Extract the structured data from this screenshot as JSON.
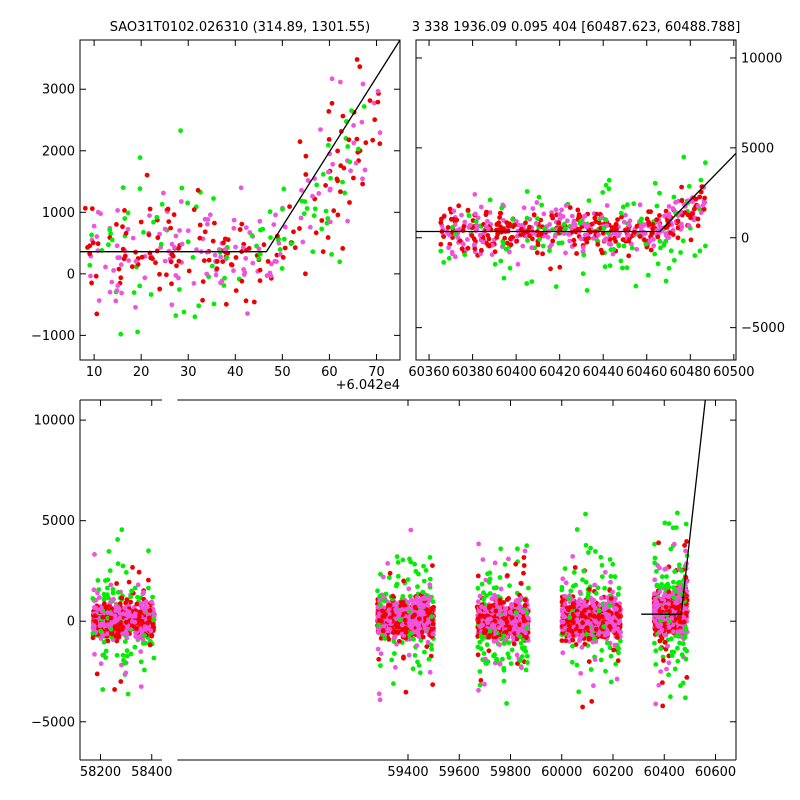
{
  "titles": {
    "left": "SAO31T0102.026310 (314.89, 1301.55)",
    "right": "3 338 1936.09 0.095 404 [60487.623, 60488.788]"
  },
  "offset_label": "+6.042e4",
  "colors": {
    "green": "#00ee00",
    "red": "#ee0000",
    "magenta": "#ee55dd",
    "line": "#000000"
  },
  "chart_data": [
    {
      "id": "zoom-left",
      "type": "scatter",
      "xlim": [
        7,
        75
      ],
      "ylim": [
        -1400,
        3800
      ],
      "x_offset": 60420,
      "xticks": [
        10,
        20,
        30,
        40,
        50,
        60,
        70
      ],
      "yticks": [
        -1000,
        0,
        1000,
        2000,
        3000
      ],
      "ytick_side": "left",
      "model": {
        "x": [
          7,
          46.6,
          75
        ],
        "y": [
          360,
          360,
          3800
        ]
      }
    },
    {
      "id": "zoom-right",
      "type": "scatter",
      "xlim": [
        60354,
        60501
      ],
      "ylim": [
        -6800,
        11000
      ],
      "xticks": [
        60360,
        60380,
        60400,
        60420,
        60440,
        60460,
        60480,
        60500
      ],
      "yticks": [
        -5000,
        0,
        5000,
        10000
      ],
      "ytick_side": "right",
      "model": {
        "x": [
          60354,
          60466,
          60501
        ],
        "y": [
          350,
          350,
          4700
        ]
      }
    },
    {
      "id": "full",
      "type": "scatter",
      "xlim": [
        58120,
        60680
      ],
      "ylim": [
        -6900,
        11000
      ],
      "xticks": [
        58200,
        58400,
        59400,
        59600,
        59800,
        60000,
        60200,
        60400,
        60600
      ],
      "yticks": [
        -5000,
        0,
        5000,
        10000
      ],
      "ytick_side": "left",
      "broken_axis_gap": [
        58440,
        58500
      ],
      "model": {
        "x": [
          60310,
          60466,
          60560
        ],
        "y": [
          350,
          350,
          11000
        ]
      },
      "clusters": [
        {
          "x_min": 58170,
          "x_max": 58410,
          "center": 0,
          "spread": 350
        },
        {
          "x_min": 59280,
          "x_max": 59500,
          "center": 100,
          "spread": 400
        },
        {
          "x_min": 59670,
          "x_max": 59870,
          "center": 50,
          "spread": 400
        },
        {
          "x_min": 60000,
          "x_max": 60230,
          "center": 100,
          "spread": 450
        },
        {
          "x_min": 60360,
          "x_max": 60490,
          "center": 400,
          "spread": 450
        }
      ]
    }
  ]
}
